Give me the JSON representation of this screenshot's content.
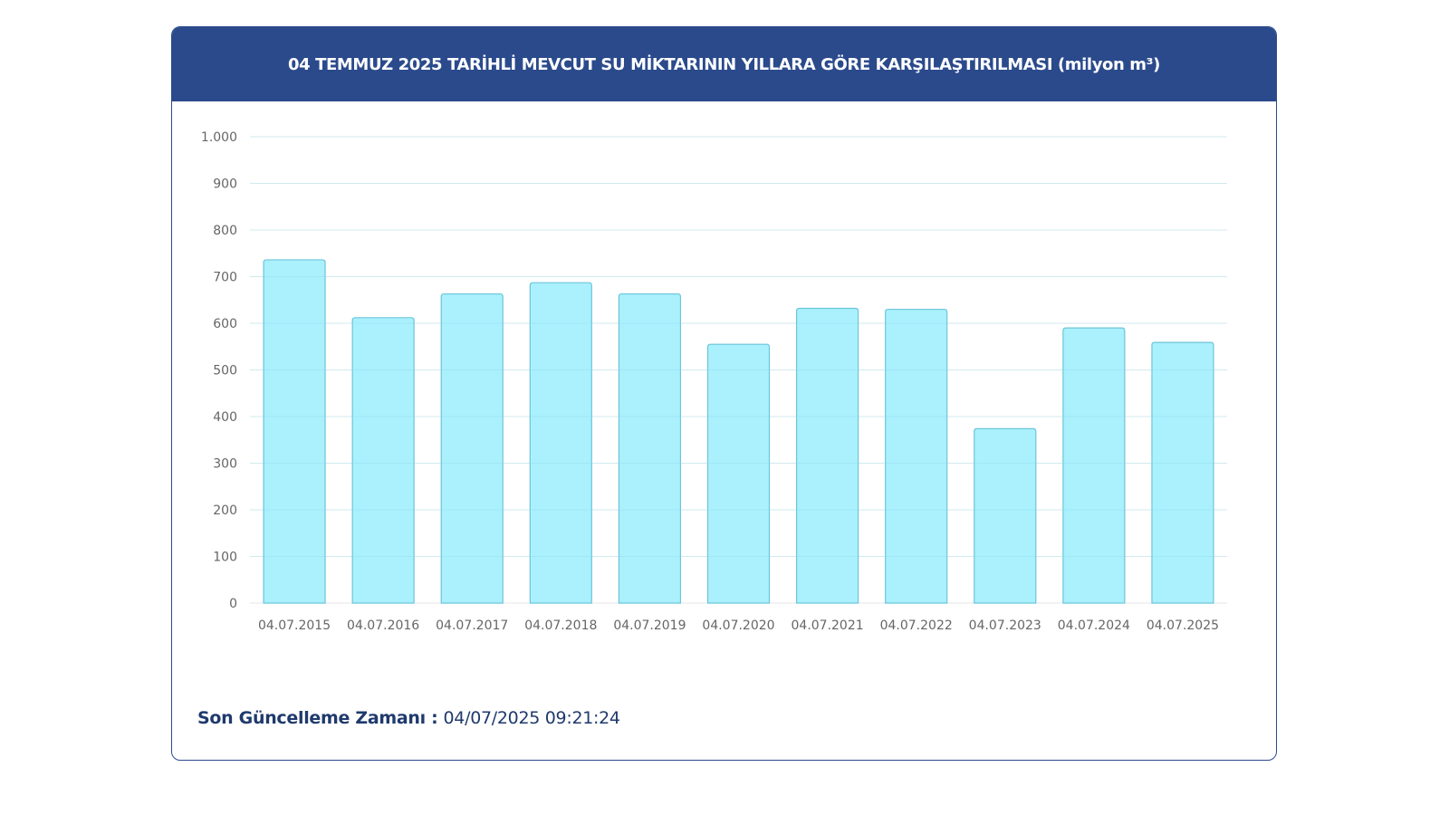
{
  "header": {
    "title": "04 TEMMUZ 2025 TARİHLİ MEVCUT SU MİKTARININ YILLARA GÖRE KARŞILAŞTIRILMASI (milyon m³)"
  },
  "footer": {
    "label": "Son Güncelleme Zamanı :",
    "value": "04/07/2025 09:21:24"
  },
  "colors": {
    "header_bg": "#2b4a8c",
    "bar_fill": "#aaf0fd",
    "bar_stroke": "#6cc5da",
    "footer_text": "#1f3a6d"
  },
  "chart_data": {
    "type": "bar",
    "title": "04 TEMMUZ 2025 TARİHLİ MEVCUT SU MİKTARININ YILLARA GÖRE KARŞILAŞTIRILMASI (milyon m³)",
    "xlabel": "",
    "ylabel": "",
    "ylim": [
      0,
      1000
    ],
    "yticks": [
      0,
      100,
      200,
      300,
      400,
      500,
      600,
      700,
      800,
      900,
      1000
    ],
    "ytick_labels": [
      "0",
      "100",
      "200",
      "300",
      "400",
      "500",
      "600",
      "700",
      "800",
      "900",
      "1.000"
    ],
    "grid": true,
    "legend": "none",
    "categories": [
      "04.07.2015",
      "04.07.2016",
      "04.07.2017",
      "04.07.2018",
      "04.07.2019",
      "04.07.2020",
      "04.07.2021",
      "04.07.2022",
      "04.07.2023",
      "04.07.2024",
      "04.07.2025"
    ],
    "values": [
      736,
      612,
      663,
      687,
      663,
      555,
      632,
      630,
      374,
      590,
      559
    ]
  }
}
